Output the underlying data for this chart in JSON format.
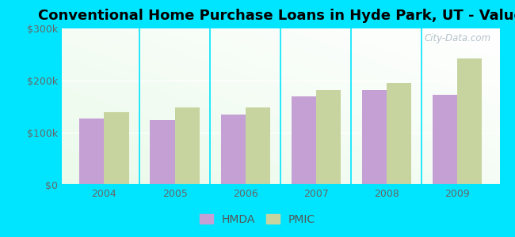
{
  "title": "Conventional Home Purchase Loans in Hyde Park, UT - Value",
  "categories": [
    "2004",
    "2005",
    "2006",
    "2007",
    "2008",
    "2009"
  ],
  "hmda_values": [
    128000,
    125000,
    135000,
    170000,
    182000,
    172000
  ],
  "pmic_values": [
    140000,
    148000,
    148000,
    182000,
    196000,
    242000
  ],
  "hmda_color": "#c4a0d4",
  "pmic_color": "#c8d4a0",
  "bar_width": 0.35,
  "ylim": [
    0,
    300000
  ],
  "yticks": [
    0,
    100000,
    200000,
    300000
  ],
  "ytick_labels": [
    "$0",
    "$100k",
    "$200k",
    "$300k"
  ],
  "background_color": "#00e5ff",
  "title_fontsize": 13,
  "watermark_text": "City-Data.com",
  "legend_labels": [
    "HMDA",
    "PMIC"
  ]
}
